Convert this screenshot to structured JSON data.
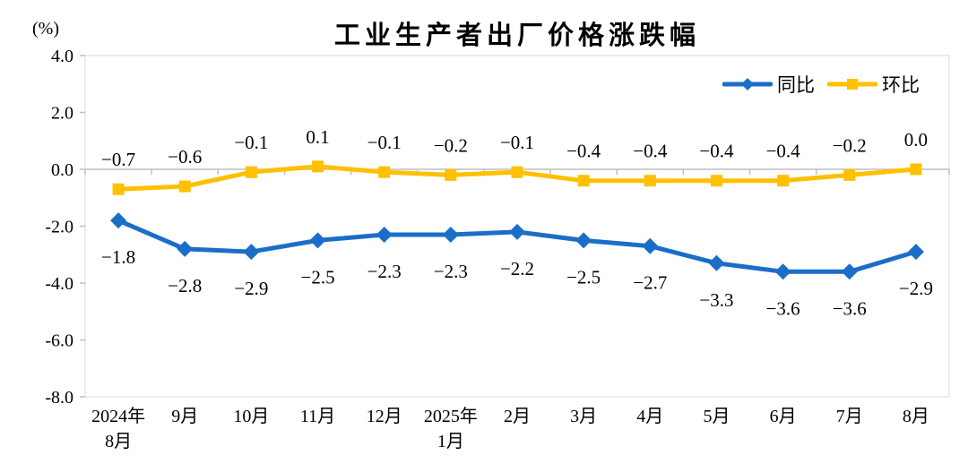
{
  "chart_data": {
    "type": "line",
    "title": "工业生产者出厂价格涨跌幅",
    "unit_label": "(%)",
    "categories": [
      [
        "2024年",
        "8月"
      ],
      [
        "9月"
      ],
      [
        "10月"
      ],
      [
        "11月"
      ],
      [
        "12月"
      ],
      [
        "2025年",
        "1月"
      ],
      [
        "2月"
      ],
      [
        "3月"
      ],
      [
        "4月"
      ],
      [
        "5月"
      ],
      [
        "6月"
      ],
      [
        "7月"
      ],
      [
        "8月"
      ]
    ],
    "series": [
      {
        "name": "同比",
        "marker": "diamond",
        "color": "#1B6EC8",
        "values": [
          -1.8,
          -2.8,
          -2.9,
          -2.5,
          -2.3,
          -2.3,
          -2.2,
          -2.5,
          -2.7,
          -3.3,
          -3.6,
          -3.6,
          -2.9
        ]
      },
      {
        "name": "环比",
        "marker": "square",
        "color": "#FFC000",
        "values": [
          -0.7,
          -0.6,
          -0.1,
          0.1,
          -0.1,
          -0.2,
          -0.1,
          -0.4,
          -0.4,
          -0.4,
          -0.4,
          -0.2,
          0.0
        ]
      }
    ],
    "y_ticks": [
      4.0,
      2.0,
      0.0,
      -2.0,
      -4.0,
      -6.0,
      -8.0
    ],
    "ylim": [
      -8.0,
      4.0
    ],
    "grid": false,
    "legend_position": "top-right",
    "axis_line_color": "#BFBFBF",
    "plot_border_color": "#D9D9D9"
  }
}
